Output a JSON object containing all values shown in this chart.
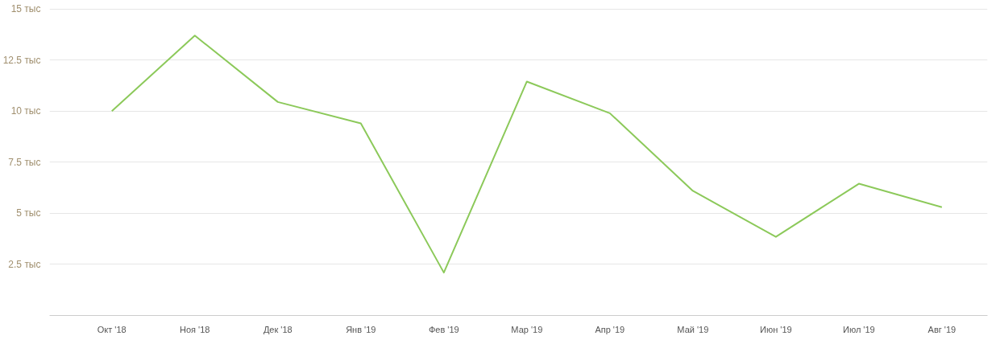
{
  "chart_data": {
    "type": "line",
    "categories": [
      "Окт '18",
      "Ноя '18",
      "Дек '18",
      "Янв '19",
      "Фев '19",
      "Мар '19",
      "Апр '19",
      "Май '19",
      "Июн '19",
      "Июл '19",
      "Авг '19"
    ],
    "series": [
      {
        "color": "#8cc95a",
        "values": [
          10,
          13.7,
          10.45,
          9.4,
          2.1,
          11.45,
          9.9,
          6.1,
          3.85,
          6.45,
          5.3
        ]
      }
    ],
    "ylim": [
      0,
      15
    ],
    "yticks": [
      {
        "value": 2.5,
        "label": "2.5 тыс"
      },
      {
        "value": 5,
        "label": "5 тыс"
      },
      {
        "value": 7.5,
        "label": "7.5 тыс"
      },
      {
        "value": 10,
        "label": "10 тыс"
      },
      {
        "value": 12.5,
        "label": "12.5 тыс"
      },
      {
        "value": 15,
        "label": "15 тыс"
      }
    ],
    "grid": "y",
    "marker": "none",
    "line_style": "solid"
  }
}
